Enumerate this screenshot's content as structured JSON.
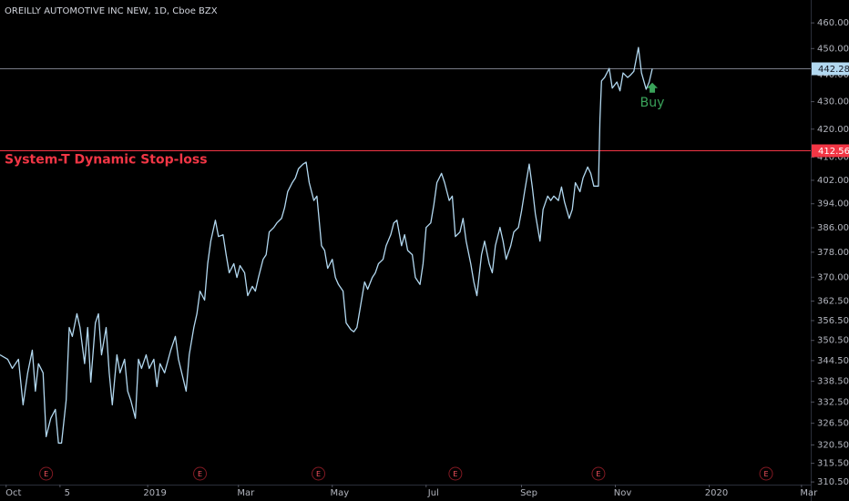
{
  "chart_data": {
    "type": "line",
    "title": "OREILLY AUTOMOTIVE INC NEW, 1D, Cboe BZX",
    "color": "#b2d8f0",
    "log_scale": true,
    "grid": false,
    "xlim": [
      "2018-09-27",
      "2020-03-07"
    ],
    "xticks": [
      {
        "value": "2018-10-01",
        "label": "Oct"
      },
      {
        "value": "2018-11-05",
        "label": "5"
      },
      {
        "value": "2019-01-01",
        "label": "2019"
      },
      {
        "value": "2019-03-01",
        "label": "Mar"
      },
      {
        "value": "2019-05-01",
        "label": "May"
      },
      {
        "value": "2019-07-01",
        "label": "Jul"
      },
      {
        "value": "2019-09-01",
        "label": "Sep"
      },
      {
        "value": "2019-11-01",
        "label": "Nov"
      },
      {
        "value": "2020-01-01",
        "label": "2020"
      },
      {
        "value": "2020-03-01",
        "label": "Mar"
      }
    ],
    "ylim": [
      309.8,
      469.1
    ],
    "yticks": [
      {
        "value": 310.5,
        "label": "310.50"
      },
      {
        "value": 315.5,
        "label": "315.50"
      },
      {
        "value": 320.5,
        "label": "320.50"
      },
      {
        "value": 326.5,
        "label": "326.50"
      },
      {
        "value": 332.5,
        "label": "332.50"
      },
      {
        "value": 338.5,
        "label": "338.50"
      },
      {
        "value": 344.5,
        "label": "344.50"
      },
      {
        "value": 350.5,
        "label": "350.50"
      },
      {
        "value": 356.5,
        "label": "356.50"
      },
      {
        "value": 362.5,
        "label": "362.50"
      },
      {
        "value": 370,
        "label": "370.00"
      },
      {
        "value": 378,
        "label": "378.00"
      },
      {
        "value": 386,
        "label": "386.00"
      },
      {
        "value": 394,
        "label": "394.00"
      },
      {
        "value": 402,
        "label": "402.00"
      },
      {
        "value": 410,
        "label": "410.00"
      },
      {
        "value": 420,
        "label": "420.00"
      },
      {
        "value": 430,
        "label": "430.00"
      },
      {
        "value": 440,
        "label": "440.00"
      },
      {
        "value": 450,
        "label": "450.00"
      },
      {
        "value": 460,
        "label": "460.00"
      }
    ],
    "x": [
      "2018-09-27",
      "2018-10-02",
      "2018-10-05",
      "2018-10-09",
      "2018-10-12",
      "2018-10-15",
      "2018-10-18",
      "2018-10-20",
      "2018-10-22",
      "2018-10-25",
      "2018-10-27",
      "2018-10-30",
      "2018-11-02",
      "2018-11-04",
      "2018-11-06",
      "2018-11-09",
      "2018-11-11",
      "2018-11-13",
      "2018-11-16",
      "2018-11-18",
      "2018-11-21",
      "2018-11-23",
      "2018-11-25",
      "2018-11-28",
      "2018-11-30",
      "2018-12-02",
      "2018-12-05",
      "2018-12-07",
      "2018-12-09",
      "2018-12-12",
      "2018-12-14",
      "2018-12-17",
      "2018-12-19",
      "2018-12-21",
      "2018-12-24",
      "2018-12-26",
      "2018-12-28",
      "2018-12-31",
      "2019-01-02",
      "2019-01-05",
      "2019-01-07",
      "2019-01-09",
      "2019-01-12",
      "2019-01-16",
      "2019-01-19",
      "2019-01-21",
      "2019-01-26",
      "2019-01-28",
      "2019-01-31",
      "2019-02-02",
      "2019-02-04",
      "2019-02-07",
      "2019-02-09",
      "2019-02-11",
      "2019-02-14",
      "2019-02-16",
      "2019-02-19",
      "2019-02-21",
      "2019-02-23",
      "2019-02-26",
      "2019-02-28",
      "2019-03-02",
      "2019-03-05",
      "2019-03-07",
      "2019-03-10",
      "2019-03-12",
      "2019-03-14",
      "2019-03-17",
      "2019-03-19",
      "2019-03-21",
      "2019-03-24",
      "2019-03-26",
      "2019-03-29",
      "2019-03-31",
      "2019-04-02",
      "2019-04-05",
      "2019-04-07",
      "2019-04-09",
      "2019-04-12",
      "2019-04-14",
      "2019-04-16",
      "2019-04-19",
      "2019-04-21",
      "2019-04-24",
      "2019-04-26",
      "2019-04-28",
      "2019-05-01",
      "2019-05-03",
      "2019-05-05",
      "2019-05-08",
      "2019-05-10",
      "2019-05-13",
      "2019-05-15",
      "2019-05-17",
      "2019-05-20",
      "2019-05-22",
      "2019-05-24",
      "2019-05-27",
      "2019-05-29",
      "2019-05-31",
      "2019-06-03",
      "2019-06-05",
      "2019-06-08",
      "2019-06-10",
      "2019-06-12",
      "2019-06-15",
      "2019-06-17",
      "2019-06-19",
      "2019-06-22",
      "2019-06-24",
      "2019-06-27",
      "2019-06-29",
      "2019-07-01",
      "2019-07-04",
      "2019-07-06",
      "2019-07-08",
      "2019-07-11",
      "2019-07-13",
      "2019-07-16",
      "2019-07-18",
      "2019-07-20",
      "2019-07-23",
      "2019-07-25",
      "2019-07-27",
      "2019-07-30",
      "2019-08-01",
      "2019-08-03",
      "2019-08-06",
      "2019-08-08",
      "2019-08-11",
      "2019-08-13",
      "2019-08-15",
      "2019-08-18",
      "2019-08-20",
      "2019-08-22",
      "2019-08-25",
      "2019-08-27",
      "2019-08-30",
      "2019-09-01",
      "2019-09-03",
      "2019-09-06",
      "2019-09-08",
      "2019-09-10",
      "2019-09-13",
      "2019-09-15",
      "2019-09-18",
      "2019-09-20",
      "2019-09-22",
      "2019-09-25",
      "2019-09-27",
      "2019-09-29",
      "2019-10-02",
      "2019-10-04",
      "2019-10-06",
      "2019-10-09",
      "2019-10-11",
      "2019-10-14",
      "2019-10-16",
      "2019-10-18",
      "2019-10-21",
      "2019-10-22",
      "2019-10-23",
      "2019-10-25",
      "2019-10-28",
      "2019-10-30",
      "2019-11-02",
      "2019-11-04",
      "2019-11-06",
      "2019-11-09",
      "2019-11-11",
      "2019-11-13",
      "2019-11-16",
      "2019-11-18",
      "2019-11-21",
      "2019-11-23",
      "2019-11-25"
    ],
    "values": [
      346.2,
      344.9,
      342.2,
      344.9,
      331.7,
      340.9,
      347.6,
      335.6,
      343.6,
      340.9,
      322.8,
      327.9,
      330.4,
      321.0,
      321.0,
      333.0,
      354.4,
      351.7,
      358.6,
      354.4,
      343.6,
      354.4,
      338.2,
      355.8,
      358.6,
      346.2,
      354.4,
      340.9,
      331.7,
      346.2,
      340.9,
      344.9,
      335.6,
      333.0,
      327.9,
      344.9,
      342.2,
      346.2,
      342.2,
      344.9,
      336.9,
      343.6,
      340.9,
      347.6,
      351.7,
      344.9,
      335.6,
      346.2,
      354.4,
      358.6,
      365.6,
      362.8,
      374.3,
      381.6,
      388.5,
      383.1,
      383.7,
      377.2,
      371.4,
      374.3,
      369.9,
      373.7,
      371.4,
      364.2,
      367.1,
      365.6,
      369.9,
      375.7,
      377.2,
      384.6,
      386.1,
      387.6,
      389.1,
      392.7,
      398.1,
      401.2,
      402.8,
      406.0,
      407.6,
      408.3,
      401.2,
      395.1,
      396.6,
      380.1,
      378.6,
      372.8,
      375.7,
      369.9,
      367.7,
      365.6,
      355.8,
      353.8,
      353.1,
      354.4,
      362.8,
      368.5,
      366.2,
      369.9,
      371.4,
      374.3,
      375.7,
      380.1,
      383.7,
      387.6,
      388.5,
      380.1,
      383.7,
      378.6,
      377.2,
      369.9,
      367.7,
      374.3,
      386.1,
      387.6,
      393.6,
      401.2,
      404.4,
      401.2,
      395.1,
      396.6,
      383.1,
      384.6,
      389.1,
      381.6,
      374.3,
      368.5,
      364.2,
      377.2,
      381.6,
      374.3,
      371.4,
      380.1,
      386.1,
      381.6,
      375.7,
      380.1,
      384.6,
      386.1,
      391.5,
      398.1,
      407.6,
      399.7,
      390.6,
      381.6,
      392.1,
      396.6,
      395.1,
      396.6,
      395.1,
      399.7,
      394.5,
      389.1,
      392.1,
      401.2,
      398.1,
      402.8,
      406.6,
      404.4,
      400.0,
      400.0,
      423.8,
      437.7,
      439.0,
      442.4,
      435.0,
      437.3,
      434.0,
      440.7,
      439.0,
      440.0,
      441.3,
      450.4,
      440.7,
      434.6,
      437.3,
      442.3
    ],
    "hlines": [
      {
        "value": 412.56,
        "color": "#f23645",
        "text": "System-T Dynamic Stop-loss"
      },
      {
        "value": 442.28,
        "color": "#787b86"
      }
    ],
    "earnings": [
      {
        "x": "2018-10-27",
        "label": "E"
      },
      {
        "x": "2019-02-04",
        "label": "E"
      },
      {
        "x": "2019-04-22",
        "label": "E"
      },
      {
        "x": "2019-07-20",
        "label": "E"
      },
      {
        "x": "2019-10-21",
        "label": "E"
      },
      {
        "x": "2020-02-07",
        "label": "E"
      }
    ],
    "annotations": [
      {
        "text": "Buy",
        "x": "2019-11-25",
        "y": 435,
        "color": "#3aa35a"
      }
    ]
  }
}
